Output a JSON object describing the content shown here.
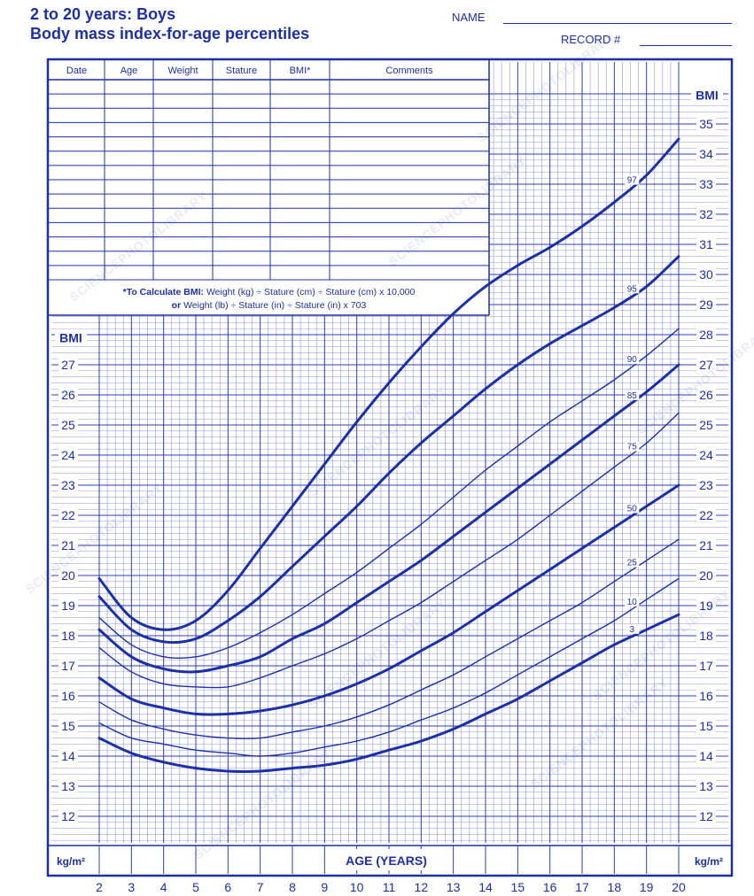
{
  "header": {
    "title_line1": "2 to 20 years: Boys",
    "title_line2": "Body mass index-for-age percentiles",
    "name_label": "NAME",
    "record_label": "RECORD #"
  },
  "table": {
    "columns": [
      "Date",
      "Age",
      "Weight",
      "Stature",
      "BMI*",
      "Comments"
    ],
    "formula_line1_bold": "*To Calculate BMI:",
    "formula_line1_rest": " Weight (kg) ÷ Stature (cm) ÷ Stature (cm) x 10,000",
    "formula_line2_bold": "or",
    "formula_line2_rest": " Weight (lb) ÷ Stature (in) ÷ Stature (in) x 703"
  },
  "watermark": "SCIENCEPHOTOLIBRARY",
  "chart_data": {
    "type": "line",
    "xlabel": "AGE (YEARS)",
    "ylabel_left": "BMI",
    "ylabel_right": "BMI",
    "unit_left": "kg/m²",
    "unit_right": "kg/m²",
    "xlim": [
      2,
      20
    ],
    "ylim_left": [
      11,
      28
    ],
    "ylim_right": [
      11,
      36
    ],
    "x_ticks": [
      2,
      3,
      4,
      5,
      6,
      7,
      8,
      9,
      10,
      11,
      12,
      13,
      14,
      15,
      16,
      17,
      18,
      19,
      20
    ],
    "y_ticks_left": [
      12,
      13,
      14,
      15,
      16,
      17,
      18,
      19,
      20,
      21,
      22,
      23,
      24,
      25,
      26,
      27
    ],
    "y_ticks_right": [
      12,
      13,
      14,
      15,
      16,
      17,
      18,
      19,
      20,
      21,
      22,
      23,
      24,
      25,
      26,
      27,
      28,
      29,
      30,
      31,
      32,
      33,
      34,
      35
    ],
    "x": [
      2,
      3,
      4,
      5,
      6,
      7,
      8,
      9,
      10,
      11,
      12,
      13,
      14,
      15,
      16,
      17,
      18,
      19,
      20
    ],
    "series": [
      {
        "name": "97",
        "bold": true,
        "values": [
          19.9,
          18.6,
          18.2,
          18.5,
          19.5,
          20.9,
          22.3,
          23.7,
          25.1,
          26.4,
          27.6,
          28.7,
          29.6,
          30.3,
          30.9,
          31.6,
          32.4,
          33.3,
          34.5
        ]
      },
      {
        "name": "95",
        "bold": true,
        "values": [
          19.3,
          18.2,
          17.8,
          17.9,
          18.5,
          19.3,
          20.3,
          21.3,
          22.3,
          23.4,
          24.4,
          25.3,
          26.2,
          27.0,
          27.7,
          28.3,
          28.9,
          29.6,
          30.6
        ]
      },
      {
        "name": "90",
        "bold": false,
        "values": [
          18.6,
          17.7,
          17.3,
          17.3,
          17.6,
          18.1,
          18.7,
          19.4,
          20.1,
          20.9,
          21.7,
          22.6,
          23.5,
          24.3,
          25.1,
          25.8,
          26.5,
          27.3,
          28.2
        ]
      },
      {
        "name": "85",
        "bold": true,
        "values": [
          18.2,
          17.3,
          16.9,
          16.8,
          17.0,
          17.3,
          17.9,
          18.4,
          19.1,
          19.8,
          20.5,
          21.3,
          22.1,
          22.9,
          23.7,
          24.5,
          25.3,
          26.1,
          27.0
        ]
      },
      {
        "name": "75",
        "bold": false,
        "values": [
          17.6,
          16.8,
          16.4,
          16.3,
          16.3,
          16.6,
          17.0,
          17.4,
          17.9,
          18.5,
          19.1,
          19.8,
          20.5,
          21.2,
          22.0,
          22.8,
          23.6,
          24.4,
          25.4
        ]
      },
      {
        "name": "50",
        "bold": true,
        "values": [
          16.6,
          15.9,
          15.6,
          15.4,
          15.4,
          15.5,
          15.7,
          16.0,
          16.4,
          16.9,
          17.5,
          18.1,
          18.8,
          19.5,
          20.2,
          20.9,
          21.6,
          22.3,
          23.0
        ]
      },
      {
        "name": "25",
        "bold": false,
        "values": [
          15.8,
          15.2,
          14.9,
          14.7,
          14.6,
          14.6,
          14.8,
          15.0,
          15.3,
          15.7,
          16.2,
          16.7,
          17.3,
          17.9,
          18.5,
          19.1,
          19.8,
          20.5,
          21.2
        ]
      },
      {
        "name": "10",
        "bold": false,
        "values": [
          15.1,
          14.6,
          14.4,
          14.2,
          14.1,
          14.0,
          14.1,
          14.3,
          14.5,
          14.8,
          15.2,
          15.6,
          16.1,
          16.7,
          17.3,
          17.9,
          18.5,
          19.2,
          19.9
        ]
      },
      {
        "name": "3",
        "bold": true,
        "values": [
          14.6,
          14.1,
          13.8,
          13.6,
          13.5,
          13.5,
          13.6,
          13.7,
          13.9,
          14.2,
          14.5,
          14.9,
          15.4,
          15.9,
          16.5,
          17.1,
          17.7,
          18.2,
          18.7
        ]
      }
    ]
  },
  "colors": {
    "ink": "#1d2fa6",
    "grid_major": "#2c3eb8",
    "grid_minor": "#8c96e0",
    "background": "#ffffff"
  }
}
